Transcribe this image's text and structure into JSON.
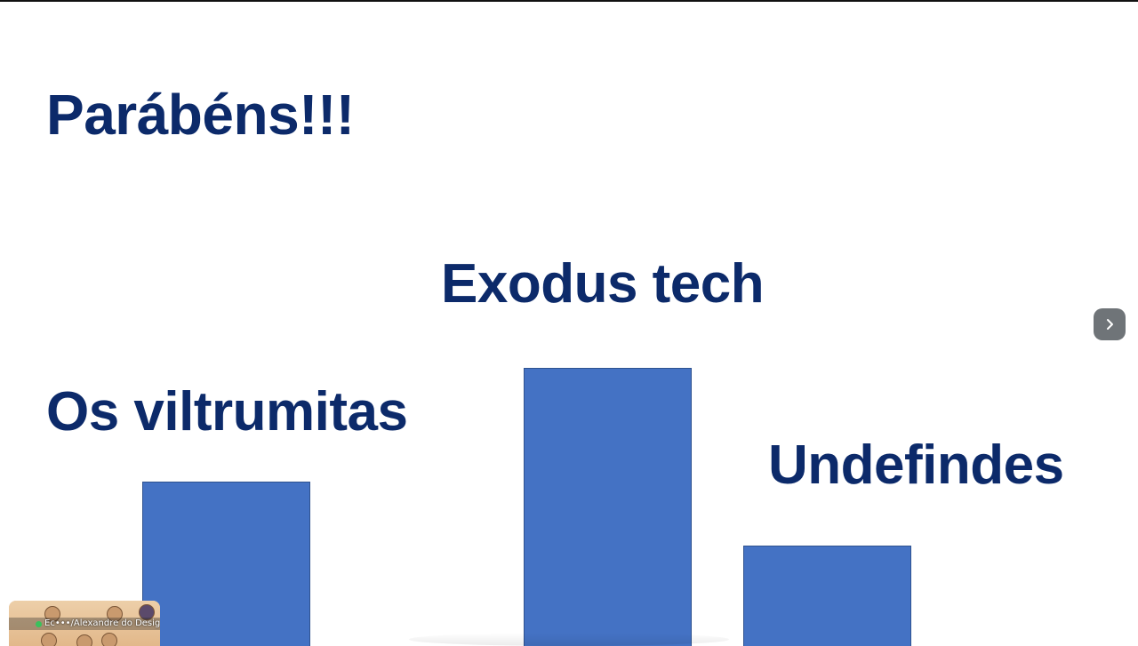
{
  "slide": {
    "title": "Parábéns!!!",
    "teams": [
      {
        "label": "Os viltrumitas",
        "bar_color": "#4472c4"
      },
      {
        "label": "Exodus tech",
        "bar_color": "#4472c4"
      },
      {
        "label": "Undefindes",
        "bar_color": "#4472c4"
      }
    ],
    "text_color": "#0c2a6a"
  },
  "navigation": {
    "next_icon": "chevron-right-icon"
  },
  "participant": {
    "name": "Ec•••/Alexandre do Desig",
    "status_color": "#39c15c"
  }
}
